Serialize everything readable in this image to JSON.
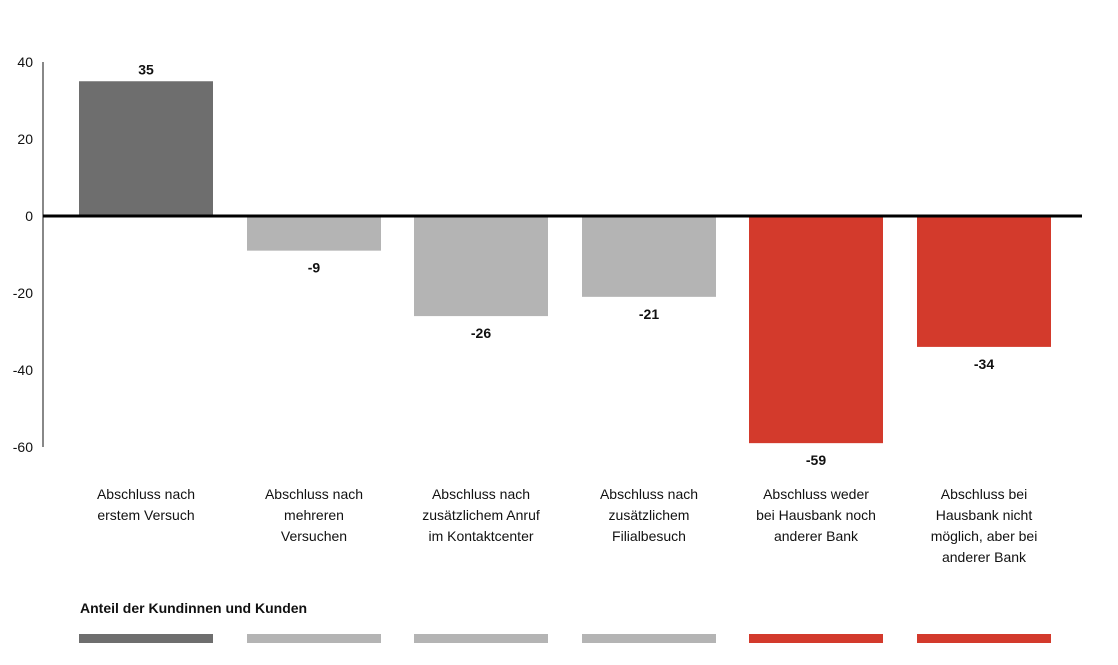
{
  "chart_data": {
    "type": "bar",
    "categories": [
      [
        "Abschluss nach",
        "erstem Versuch"
      ],
      [
        "Abschluss nach",
        "mehreren",
        "Versuchen"
      ],
      [
        "Abschluss nach",
        "zusätzlichem Anruf",
        "im Kontaktcenter"
      ],
      [
        "Abschluss nach",
        "zusätzlichem",
        "Filialbesuch"
      ],
      [
        "Abschluss weder",
        "bei Hausbank noch",
        "anderer Bank"
      ],
      [
        "Abschluss bei",
        "Hausbank nicht",
        "möglich, aber bei",
        "anderer Bank"
      ]
    ],
    "values": [
      35,
      -9,
      -26,
      -21,
      -59,
      -34
    ],
    "value_labels": [
      "35",
      "-9",
      "-26",
      "-21",
      "-59",
      "-34"
    ],
    "colors": [
      "#6e6e6e",
      "#b4b4b4",
      "#b4b4b4",
      "#b4b4b4",
      "#d33a2c",
      "#d33a2c"
    ],
    "ylim": [
      -60,
      40
    ],
    "yticks": [
      40,
      20,
      0,
      -20,
      -40,
      -60
    ],
    "ytick_labels": [
      "40",
      "20",
      "0",
      "-20",
      "-40",
      "-60"
    ],
    "legend_title": "Anteil der Kundinnen und Kunden",
    "grid": false
  }
}
